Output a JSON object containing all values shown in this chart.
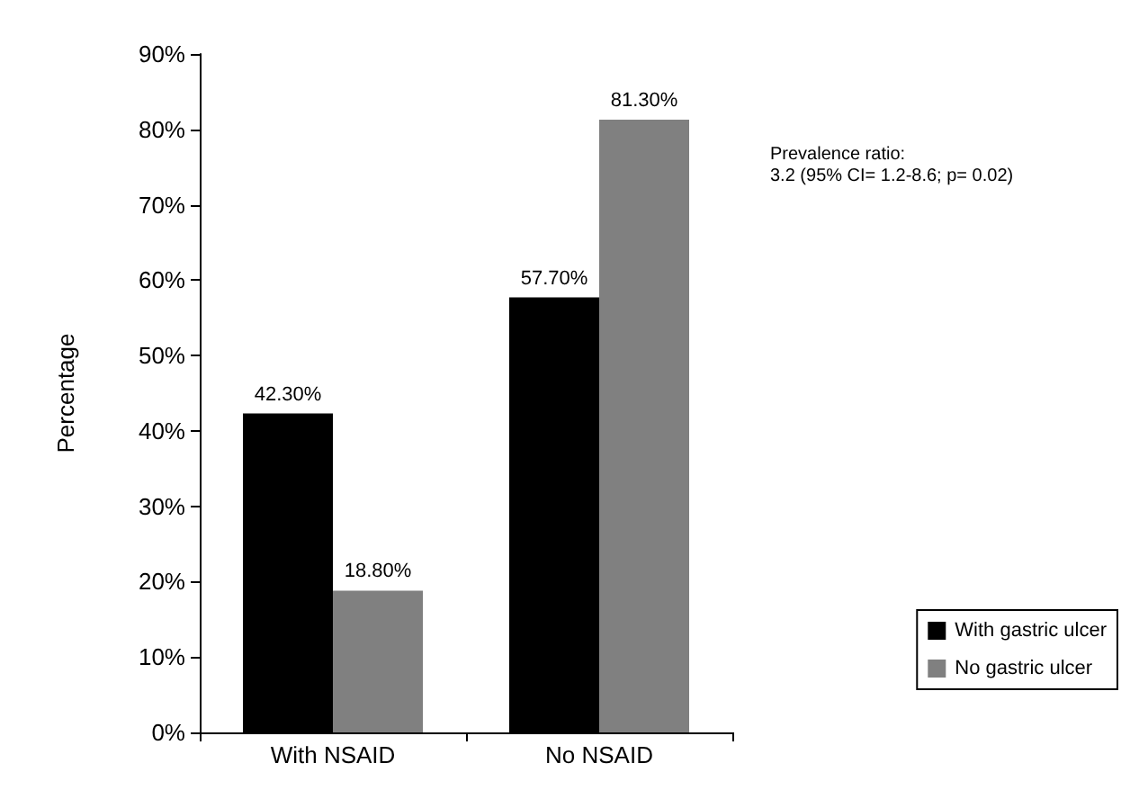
{
  "chart_data": {
    "type": "bar",
    "ylabel": "Percentage",
    "categories": [
      "With NSAID",
      "No NSAID"
    ],
    "series": [
      {
        "name": "With gastric ulcer",
        "color": "#000000",
        "values": [
          42.3,
          57.7
        ],
        "value_labels": [
          "42.30%",
          "57.70%"
        ]
      },
      {
        "name": "No gastric ulcer",
        "color": "#808080",
        "values": [
          18.8,
          81.3
        ],
        "value_labels": [
          "18.80%",
          "81.30%"
        ]
      }
    ],
    "ylim": [
      0,
      90
    ],
    "yticks": [
      {
        "value": 0,
        "label": "0%"
      },
      {
        "value": 10,
        "label": "10%"
      },
      {
        "value": 20,
        "label": "20%"
      },
      {
        "value": 30,
        "label": "30%"
      },
      {
        "value": 40,
        "label": "40%"
      },
      {
        "value": 50,
        "label": "50%"
      },
      {
        "value": 60,
        "label": "60%"
      },
      {
        "value": 70,
        "label": "70%"
      },
      {
        "value": 80,
        "label": "80%"
      },
      {
        "value": 90,
        "label": "90%"
      }
    ],
    "grid": false,
    "legend": "bottom right",
    "annotations": [
      "Prevalence ratio:\n3.2 (95% CI= 1.2-8.6; p= 0.02)"
    ]
  }
}
